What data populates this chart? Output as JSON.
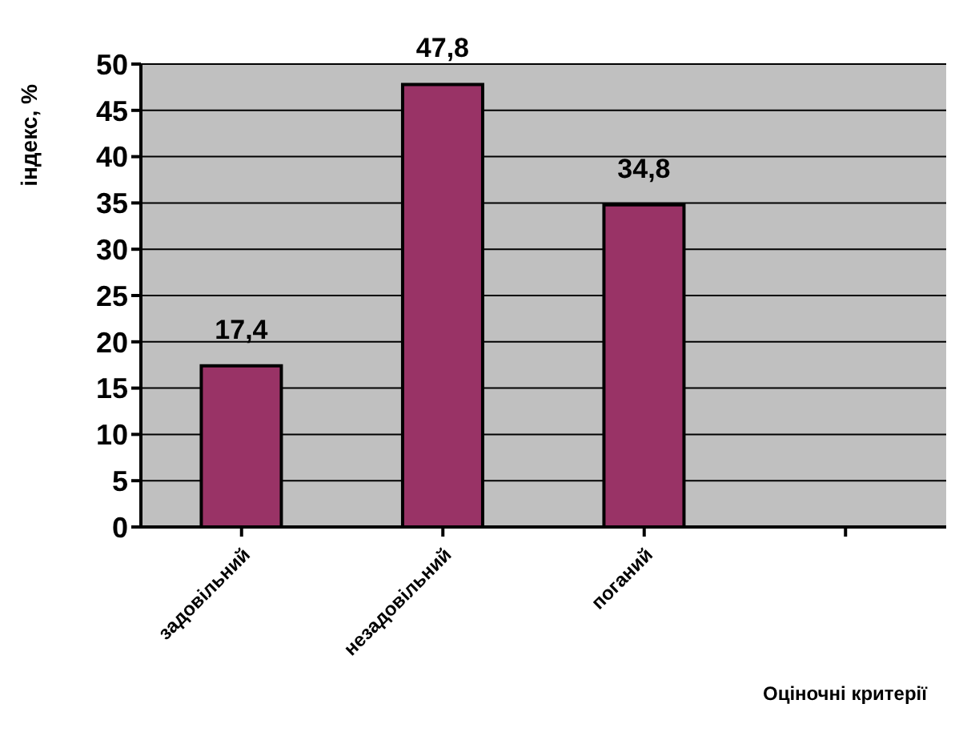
{
  "chart_data": {
    "type": "bar",
    "ylabel": "індекс, %",
    "xlabel": "Оціночні критерії",
    "categories": [
      "задовільний",
      "незадовільний",
      "поганий",
      null
    ],
    "values": [
      17.4,
      47.8,
      34.8,
      null
    ],
    "value_labels": [
      "17,4",
      "47,8",
      "34,8",
      null
    ],
    "color": "#993366",
    "ylim": [
      0,
      50
    ],
    "yticks": [
      0,
      5,
      10,
      15,
      20,
      25,
      30,
      35,
      40,
      45,
      50
    ],
    "grid": "y"
  }
}
